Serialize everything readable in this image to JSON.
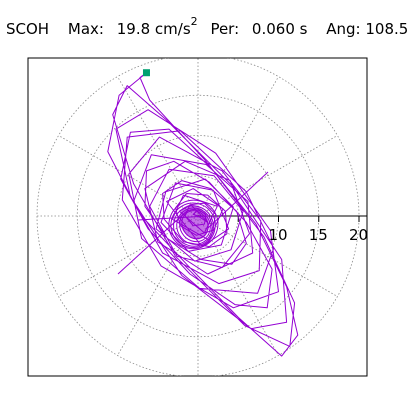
{
  "header": {
    "station": "SCOH",
    "max_label": "Max:",
    "max_value": "19.8",
    "max_unit": "cm/s",
    "max_unit_exp": "2",
    "per_label": "Per:",
    "per_value": "0.060 s",
    "ang_label": "Ang:",
    "ang_value": "108.5"
  },
  "chart_data": {
    "type": "polar-particle-motion",
    "units": "cm/s2",
    "max_amplitude": 19.8,
    "azimuth_deg": 108.5,
    "rings": [
      5,
      10,
      15,
      20
    ],
    "ring_labels": [
      "10",
      "15",
      "20"
    ],
    "colors": {
      "trace": "#9400d3",
      "marker": "#00a070",
      "grid": "#888888",
      "axis": "#000000"
    },
    "marker_point": [
      -6.4,
      17.8
    ],
    "path": [
      [
        0,
        0
      ],
      [
        1.2,
        -0.8
      ],
      [
        -0.9,
        1.4
      ],
      [
        -2.3,
        0.6
      ],
      [
        0.8,
        -2.1
      ],
      [
        2.4,
        1.2
      ],
      [
        -1.8,
        2.6
      ],
      [
        -3.2,
        -0.4
      ],
      [
        1.4,
        -3.0
      ],
      [
        3.1,
        0.9
      ],
      [
        -0.6,
        3.4
      ],
      [
        -3.9,
        1.8
      ],
      [
        0.5,
        -3.8
      ],
      [
        3.8,
        -1.6
      ],
      [
        1.9,
        3.2
      ],
      [
        -2.8,
        4.1
      ],
      [
        -4.6,
        -0.8
      ],
      [
        -1.2,
        -4.4
      ],
      [
        2.9,
        -3.6
      ],
      [
        4.4,
        1.1
      ],
      [
        0.9,
        4.6
      ],
      [
        -4.0,
        3.0
      ],
      [
        -5.2,
        -1.6
      ],
      [
        -0.4,
        -5.6
      ],
      [
        4.1,
        -4.2
      ],
      [
        5.6,
        0.6
      ],
      [
        2.0,
        5.0
      ],
      [
        -3.6,
        5.8
      ],
      [
        -6.0,
        1.2
      ],
      [
        -2.6,
        -5.0
      ],
      [
        3.0,
        -6.4
      ],
      [
        6.4,
        -2.2
      ],
      [
        4.0,
        4.4
      ],
      [
        -1.6,
        6.8
      ],
      [
        -6.6,
        3.4
      ],
      [
        -5.0,
        -3.2
      ],
      [
        1.2,
        -7.2
      ],
      [
        6.8,
        -4.6
      ],
      [
        6.2,
        1.8
      ],
      [
        1.0,
        6.4
      ],
      [
        -5.8,
        7.6
      ],
      [
        -8.0,
        1.8
      ],
      [
        -4.4,
        -4.6
      ],
      [
        2.6,
        -8.4
      ],
      [
        7.6,
        -6.8
      ],
      [
        7.8,
        -0.6
      ],
      [
        3.0,
        5.6
      ],
      [
        -4.8,
        9.8
      ],
      [
        -8.6,
        5.2
      ],
      [
        -7.0,
        -2.8
      ],
      [
        0.2,
        -9.0
      ],
      [
        7.4,
        -9.6
      ],
      [
        9.4,
        -4.0
      ],
      [
        6.0,
        3.0
      ],
      [
        -2.2,
        10.6
      ],
      [
        -8.8,
        9.8
      ],
      [
        -9.4,
        2.0
      ],
      [
        -4.6,
        -6.2
      ],
      [
        4.4,
        -11.4
      ],
      [
        10.0,
        -9.4
      ],
      [
        9.0,
        -1.8
      ],
      [
        2.2,
        7.8
      ],
      [
        -6.2,
        13.2
      ],
      [
        -10.2,
        10.8
      ],
      [
        -8.4,
        2.4
      ],
      [
        -2.0,
        -7.4
      ],
      [
        6.6,
        -14.0
      ],
      [
        11.0,
        -13.2
      ],
      [
        10.4,
        -5.4
      ],
      [
        4.4,
        3.6
      ],
      [
        -4.0,
        12.0
      ],
      [
        -8.8,
        16.2
      ],
      [
        -10.6,
        12.6
      ],
      [
        -8.0,
        4.0
      ],
      [
        -2.8,
        -5.0
      ],
      [
        5.8,
        -13.6
      ],
      [
        11.4,
        -16.2
      ],
      [
        12.0,
        -10.8
      ],
      [
        8.2,
        -2.6
      ],
      [
        1.0,
        6.8
      ],
      [
        -6.0,
        14.4
      ],
      [
        -7.2,
        17.2
      ],
      [
        -6.4,
        17.8
      ],
      [
        -9.8,
        15.0
      ],
      [
        -11.2,
        8.0
      ],
      [
        -7.2,
        0.2
      ],
      [
        -1.4,
        -6.0
      ],
      [
        5.0,
        -12.6
      ],
      [
        10.4,
        -17.4
      ],
      [
        12.4,
        -14.8
      ],
      [
        11.0,
        -8.8
      ],
      [
        7.2,
        -1.0
      ],
      [
        1.6,
        6.0
      ],
      [
        -3.6,
        10.8
      ],
      [
        -8.4,
        10.4
      ],
      [
        -9.6,
        4.6
      ],
      [
        -6.2,
        -1.6
      ],
      [
        -1.0,
        -7.2
      ],
      [
        4.6,
        -11.0
      ],
      [
        8.6,
        -11.4
      ],
      [
        9.2,
        -6.6
      ],
      [
        6.0,
        -0.8
      ],
      [
        1.4,
        4.2
      ],
      [
        -3.0,
        6.8
      ],
      [
        -6.4,
        5.6
      ],
      [
        -6.6,
        1.2
      ],
      [
        -3.8,
        -2.8
      ],
      [
        0.4,
        -5.4
      ],
      [
        4.2,
        -6.0
      ],
      [
        6.0,
        -3.4
      ],
      [
        4.8,
        0.6
      ],
      [
        1.6,
        3.4
      ],
      [
        -2.0,
        4.4
      ],
      [
        -4.4,
        2.8
      ],
      [
        -4.2,
        -0.4
      ],
      [
        -1.8,
        -3.2
      ],
      [
        1.4,
        -3.8
      ],
      [
        3.6,
        -2.2
      ],
      [
        3.4,
        0.6
      ],
      [
        1.2,
        2.6
      ],
      [
        -1.4,
        2.8
      ],
      [
        -2.8,
        1.0
      ],
      [
        -2.2,
        -1.2
      ],
      [
        -0.2,
        -2.4
      ],
      [
        1.8,
        -1.8
      ],
      [
        2.2,
        0.2
      ],
      [
        0.8,
        1.6
      ],
      [
        -1.0,
        1.4
      ],
      [
        -1.6,
        0.0
      ],
      [
        -0.6,
        -1.2
      ],
      [
        0.8,
        -1.0
      ],
      [
        1.0,
        0.2
      ],
      [
        0.0,
        0.8
      ],
      [
        -0.6,
        0.2
      ],
      [
        0,
        0
      ]
    ]
  }
}
